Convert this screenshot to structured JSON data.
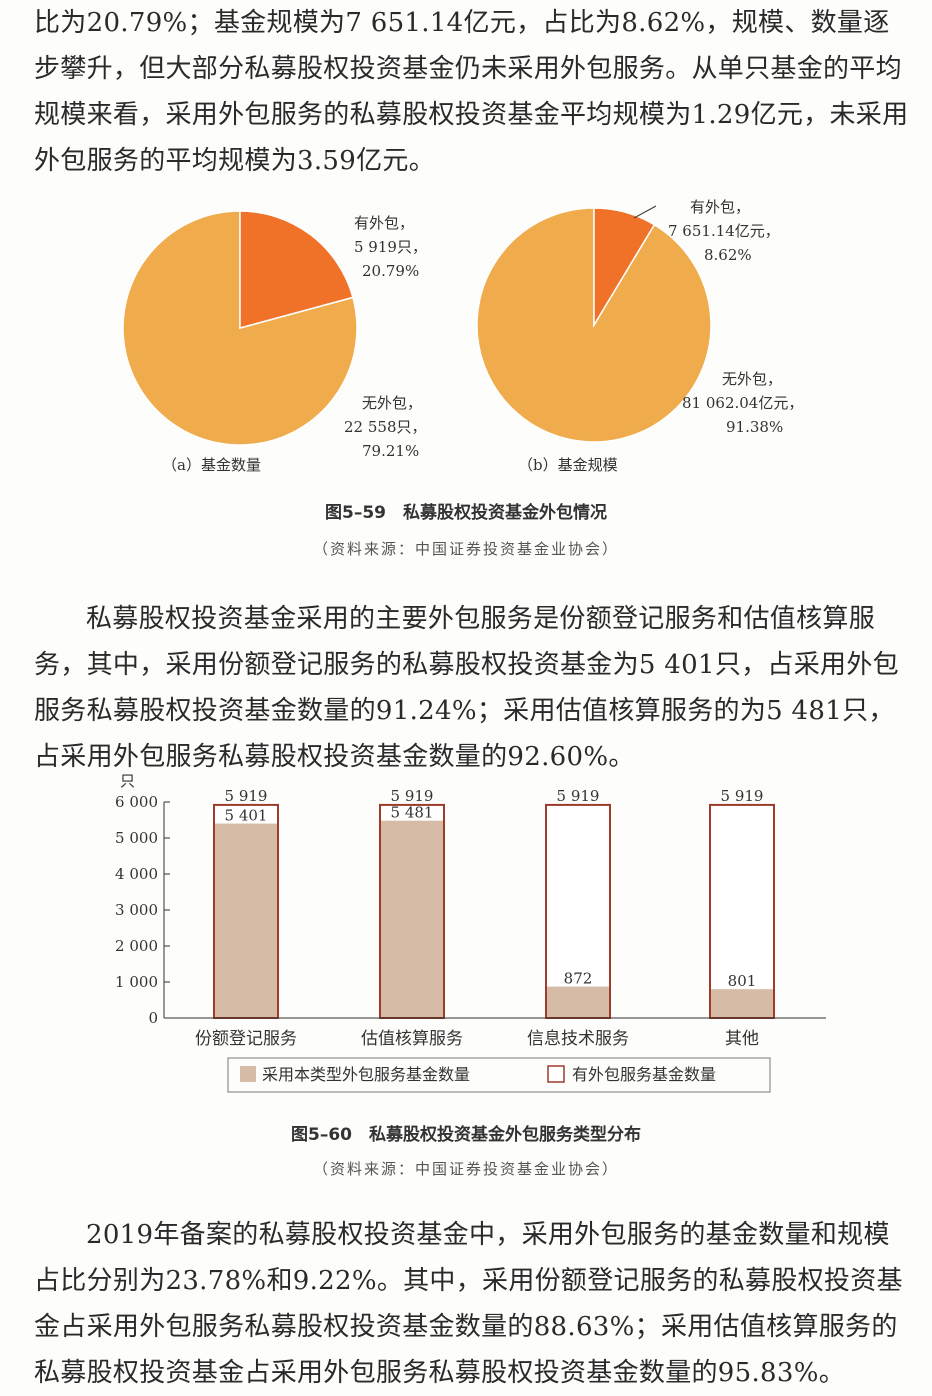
{
  "paragraphs": {
    "p1": "比为20.79%；基金规模为7 651.14亿元，占比为8.62%，规模、数量逐步攀升，但大部分私募股权投资基金仍未采用外包服务。从单只基金的平均规模来看，采用外包服务的私募股权投资基金平均规模为1.29亿元，未采用外包服务的平均规模为3.59亿元。",
    "p2": "私募股权投资基金采用的主要外包服务是份额登记服务和估值核算服务，其中，采用份额登记服务的私募股权投资基金为5 401只，占采用外包服务私募股权投资基金数量的91.24%；采用估值核算服务的为5 481只，占采用外包服务私募股权投资基金数量的92.60%。",
    "p3": "2019年备案的私募股权投资基金中，采用外包服务的基金数量和规模占比分别为23.78%和9.22%。其中，采用份额登记服务的私募股权投资基金占采用外包服务私募股权投资基金数量的88.63%；采用估值核算服务的私募股权投资基金占采用外包服务私募股权投资基金数量的95.83%。"
  },
  "colors": {
    "orange": "#ef7228",
    "yellow": "#efab4c",
    "bar_fill": "#d6bca7",
    "bar_outline": "#9e3b2a"
  },
  "figure59": {
    "title": "图5–59　私募股权投资基金外包情况",
    "source": "（资料来源：中国证券投资基金业协会）",
    "pie_a": {
      "caption": "（a）基金数量",
      "outsourced": {
        "label1": "有外包，",
        "label2": "5 919只，",
        "label3": "20.79%"
      },
      "not_outsourced": {
        "label1": "无外包，",
        "label2": "22 558只，",
        "label3": "79.21%"
      }
    },
    "pie_b": {
      "caption": "（b）基金规模",
      "outsourced": {
        "label1": "有外包，",
        "label2": "7 651.14亿元，",
        "label3": "8.62%"
      },
      "not_outsourced": {
        "label1": "无外包，",
        "label2": "81 062.04亿元，",
        "label3": "91.38%"
      }
    }
  },
  "figure60": {
    "title": "图5–60　私募股权投资基金外包服务类型分布",
    "source": "（资料来源：中国证券投资基金业协会）"
  },
  "chart_data": [
    {
      "type": "pie",
      "caption": "（a）基金数量",
      "slices": [
        {
          "name": "有外包",
          "value": 5919,
          "percent": 20.79
        },
        {
          "name": "无外包",
          "value": 22558,
          "percent": 79.21
        }
      ]
    },
    {
      "type": "pie",
      "caption": "（b）基金规模",
      "slices": [
        {
          "name": "有外包",
          "value": 7651.14,
          "percent": 8.62
        },
        {
          "name": "无外包",
          "value": 81062.04,
          "percent": 91.38
        }
      ]
    },
    {
      "type": "bar",
      "ylabel": "只",
      "ylim": [
        0,
        6000
      ],
      "yticks": [
        "0",
        "1 000",
        "2 000",
        "3 000",
        "4 000",
        "5 000",
        "6 000"
      ],
      "categories": [
        "份额登记服务",
        "估值核算服务",
        "信息技术服务",
        "其他"
      ],
      "series": [
        {
          "name": "采用本类型外包服务基金数量",
          "values": [
            5401,
            5481,
            872,
            801
          ],
          "value_labels": [
            "5 401",
            "5 481",
            "872",
            "801"
          ]
        },
        {
          "name": "有外包服务基金数量",
          "values": [
            5919,
            5919,
            5919,
            5919
          ],
          "value_labels": [
            "5 919",
            "5 919",
            "5 919",
            "5 919"
          ]
        }
      ],
      "legend": "bottom"
    }
  ]
}
